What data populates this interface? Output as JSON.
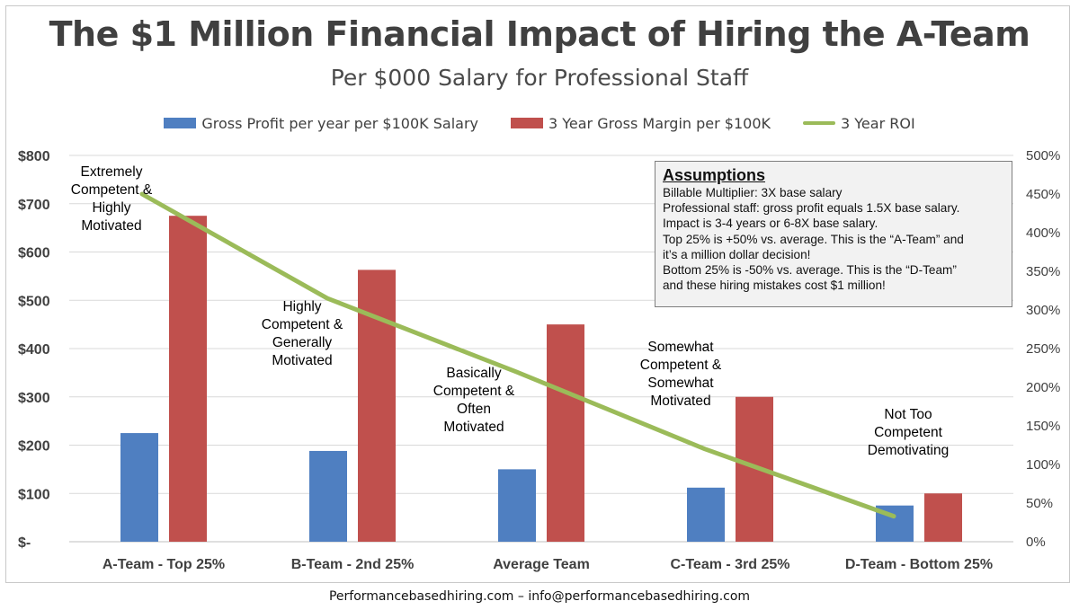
{
  "title": "The $1 Million Financial Impact of Hiring the A-Team",
  "subtitle": "Per $000 Salary for Professional Staff",
  "footer": "Performancebasedhiring.com – info@performancebasedhiring.com",
  "assumptions": {
    "title": "Assumptions",
    "lines": [
      "Billable Multiplier: 3X base salary",
      "Professional staff: gross profit equals 1.5X base salary.",
      "Impact is 3-4 years or 6-8X base salary.",
      "Top 25% is +50% vs. average. This is the “A-Team” and",
      "it’s a million dollar decision!",
      "Bottom 25% is -50% vs. average. This is the “D-Team”",
      "and these hiring mistakes cost $1 million!"
    ]
  },
  "annotations": [
    "Extremely\nCompetent &\nHighly\nMotivated",
    "Highly\nCompetent &\nGenerally\nMotivated",
    "Basically\nCompetent &\nOften\nMotivated",
    "Somewhat\nCompetent &\nSomewhat\nMotivated",
    "Not Too\nCompetent\nDemotivating"
  ],
  "colors": {
    "gross_profit": "#4f7fc1",
    "gross_margin": "#c0504d",
    "roi": "#9bbb59",
    "grid": "#d9d9d9"
  },
  "chart_data": {
    "type": "bar",
    "categories": [
      "A-Team - Top 25%",
      "B-Team - 2nd 25%",
      "Average Team",
      "C-Team - 3rd 25%",
      "D-Team - Bottom 25%"
    ],
    "series": [
      {
        "name": "Gross Profit per year per $100K Salary",
        "type": "bar",
        "axis": "left",
        "values": [
          225,
          188,
          150,
          112,
          75
        ]
      },
      {
        "name": "3 Year Gross Margin per $100K",
        "type": "bar",
        "axis": "left",
        "values": [
          675,
          563,
          450,
          300,
          100
        ]
      },
      {
        "name": "3 Year ROI",
        "type": "line",
        "axis": "right",
        "values": [
          450,
          315,
          220,
          120,
          33
        ]
      }
    ],
    "y_left": {
      "ylim": [
        0,
        800
      ],
      "ticks": [
        "$-",
        "$100",
        "$200",
        "$300",
        "$400",
        "$500",
        "$600",
        "$700",
        "$800"
      ]
    },
    "y_right": {
      "ylim": [
        0,
        500
      ],
      "ticks": [
        "0%",
        "50%",
        "100%",
        "150%",
        "200%",
        "250%",
        "300%",
        "350%",
        "400%",
        "450%",
        "500%"
      ]
    },
    "grid": true,
    "legend": "top"
  }
}
